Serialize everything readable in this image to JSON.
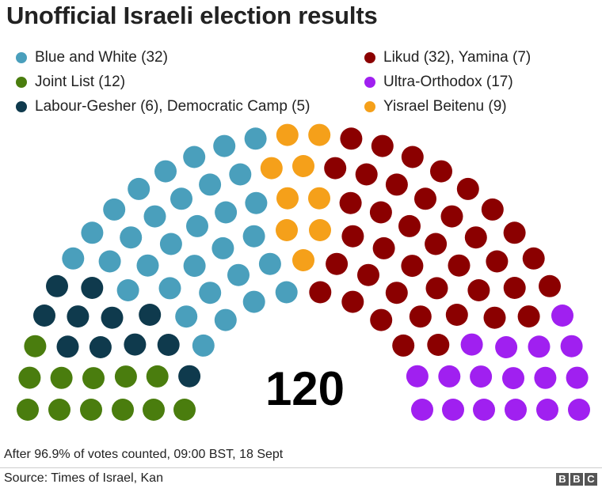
{
  "chart_data": {
    "type": "parliament",
    "title": "Unofficial Israeli election results",
    "total": "120",
    "series": [
      {
        "name": "Blue and White (32)",
        "seats": 32,
        "color": "#4a9fbc"
      },
      {
        "name": "Joint List (12)",
        "seats": 12,
        "color": "#4a7d0e"
      },
      {
        "name": "Labour-Gesher (6), Democratic Camp (5)",
        "seats": 11,
        "color": "#0f3a4d"
      },
      {
        "name": "Likud (32), Yamina (7)",
        "seats": 39,
        "color": "#8b0000"
      },
      {
        "name": "Ultra-Orthodox (17)",
        "seats": 17,
        "color": "#a020f0"
      },
      {
        "name": "Yisrael Beitenu (9)",
        "seats": 9,
        "color": "#f5a01a"
      }
    ]
  },
  "footer": {
    "note": "After 96.9% of votes counted, 09:00 BST, 18 Sept",
    "source": "Source: Times of Israel, Kan",
    "logo": [
      "B",
      "B",
      "C"
    ]
  }
}
